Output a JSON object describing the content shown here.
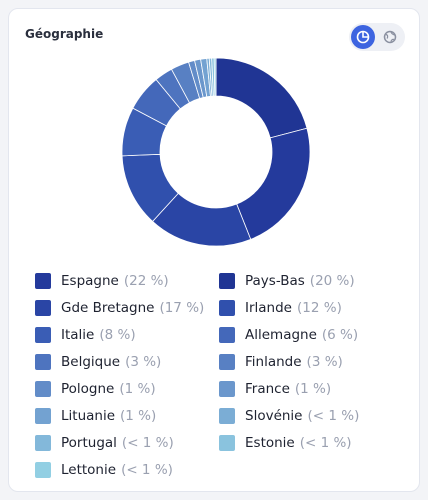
{
  "card": {
    "title": "Géographie",
    "view_toggle": {
      "options": [
        {
          "icon": "pie-chart-icon",
          "active": true
        },
        {
          "icon": "globe-icon",
          "active": false
        }
      ]
    }
  },
  "colors": {
    "accent": "#3d64e0"
  },
  "chart_data": {
    "type": "pie",
    "categories": [
      "Pays-Bas",
      "Espagne",
      "Gde Bretagne",
      "Irlande",
      "Italie",
      "Allemagne",
      "Belgique",
      "Finlande",
      "Pologne",
      "France",
      "Lituanie",
      "Slovénie",
      "Portugal",
      "Estonie",
      "Lettonie"
    ],
    "values": [
      20,
      22,
      17,
      12,
      8,
      6,
      3,
      3,
      1,
      1,
      1,
      0.4,
      0.4,
      0.4,
      0.3
    ]
  },
  "legend": [
    {
      "label": "Espagne",
      "pct": "(22 %)",
      "color": "#243a9c"
    },
    {
      "label": "Pays-Bas",
      "pct": "(20 %)",
      "color": "#203594"
    },
    {
      "label": "Gde Bretagne",
      "pct": "(17 %)",
      "color": "#2a45a5"
    },
    {
      "label": "Irlande",
      "pct": "(12 %)",
      "color": "#3050ad"
    },
    {
      "label": "Italie",
      "pct": "(8 %)",
      "color": "#3a5db5"
    },
    {
      "label": "Allemagne",
      "pct": "(6 %)",
      "color": "#4468ba"
    },
    {
      "label": "Belgique",
      "pct": "(3 %)",
      "color": "#4e74bf"
    },
    {
      "label": "Finlande",
      "pct": "(3 %)",
      "color": "#5880c3"
    },
    {
      "label": "Pologne",
      "pct": "(1 %)",
      "color": "#628cc8"
    },
    {
      "label": "France",
      "pct": "(1 %)",
      "color": "#6b97cc"
    },
    {
      "label": "Lituanie",
      "pct": "(1 %)",
      "color": "#73a2d1"
    },
    {
      "label": "Slovénie",
      "pct": "(< 1 %)",
      "color": "#7badd5"
    },
    {
      "label": "Portugal",
      "pct": "(< 1 %)",
      "color": "#83b8da"
    },
    {
      "label": "Estonie",
      "pct": "(< 1 %)",
      "color": "#8ac3de"
    },
    {
      "label": "Lettonie",
      "pct": "(< 1 %)",
      "color": "#92cfe3"
    }
  ],
  "slice_colors": {
    "Pays-Bas": "#203594",
    "Espagne": "#243a9c",
    "Gde Bretagne": "#2a45a5",
    "Irlande": "#3050ad",
    "Italie": "#3a5db5",
    "Allemagne": "#4468ba",
    "Belgique": "#4e74bf",
    "Finlande": "#5880c3",
    "Pologne": "#628cc8",
    "France": "#6b97cc",
    "Lituanie": "#73a2d1",
    "Slovénie": "#7badd5",
    "Portugal": "#83b8da",
    "Estonie": "#8ac3de",
    "Lettonie": "#92cfe3"
  }
}
